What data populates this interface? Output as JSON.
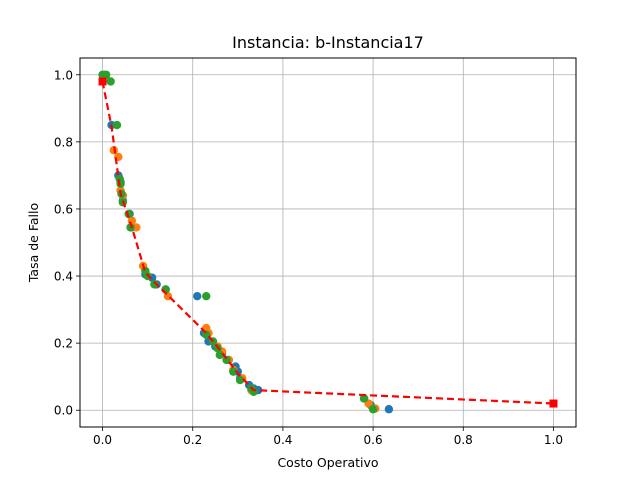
{
  "chart_data": {
    "type": "scatter",
    "title": "Instancia: b-Instancia17",
    "xlabel": "Costo Operativo",
    "ylabel": "Tasa de Fallo",
    "xlim": [
      -0.05,
      1.05
    ],
    "ylim": [
      -0.05,
      1.05
    ],
    "xticks": [
      0.0,
      0.2,
      0.4,
      0.6,
      0.8,
      1.0
    ],
    "yticks": [
      0.0,
      0.2,
      0.4,
      0.6,
      0.8,
      1.0
    ],
    "grid": true,
    "legend": "none",
    "series": [
      {
        "color": "#1f77b4",
        "marker": "circle",
        "points": [
          [
            0.005,
            1.0
          ],
          [
            0.02,
            0.85
          ],
          [
            0.035,
            0.7
          ],
          [
            0.04,
            0.68
          ],
          [
            0.045,
            0.64
          ],
          [
            0.045,
            0.625
          ],
          [
            0.06,
            0.585
          ],
          [
            0.065,
            0.545
          ],
          [
            0.095,
            0.405
          ],
          [
            0.11,
            0.395
          ],
          [
            0.12,
            0.375
          ],
          [
            0.14,
            0.36
          ],
          [
            0.21,
            0.34
          ],
          [
            0.225,
            0.23
          ],
          [
            0.235,
            0.205
          ],
          [
            0.25,
            0.19
          ],
          [
            0.265,
            0.17
          ],
          [
            0.28,
            0.15
          ],
          [
            0.295,
            0.13
          ],
          [
            0.3,
            0.115
          ],
          [
            0.305,
            0.095
          ],
          [
            0.325,
            0.075
          ],
          [
            0.335,
            0.065
          ],
          [
            0.345,
            0.06
          ],
          [
            0.58,
            0.035
          ],
          [
            0.595,
            0.015
          ],
          [
            0.6,
            0.005
          ],
          [
            0.635,
            0.003
          ]
        ]
      },
      {
        "color": "#ff7f0e",
        "marker": "circle",
        "points": [
          [
            0.003,
            0.995
          ],
          [
            0.025,
            0.775
          ],
          [
            0.035,
            0.755
          ],
          [
            0.04,
            0.655
          ],
          [
            0.045,
            0.64
          ],
          [
            0.065,
            0.565
          ],
          [
            0.075,
            0.545
          ],
          [
            0.09,
            0.43
          ],
          [
            0.145,
            0.34
          ],
          [
            0.23,
            0.245
          ],
          [
            0.235,
            0.23
          ],
          [
            0.255,
            0.19
          ],
          [
            0.265,
            0.175
          ],
          [
            0.28,
            0.15
          ],
          [
            0.29,
            0.12
          ],
          [
            0.31,
            0.095
          ],
          [
            0.33,
            0.06
          ],
          [
            0.59,
            0.02
          ],
          [
            0.605,
            0.005
          ]
        ]
      },
      {
        "color": "#2ca02c",
        "marker": "circle",
        "points": [
          [
            0.0,
            1.0
          ],
          [
            0.008,
            1.0
          ],
          [
            0.018,
            0.98
          ],
          [
            0.032,
            0.85
          ],
          [
            0.038,
            0.69
          ],
          [
            0.04,
            0.675
          ],
          [
            0.042,
            0.645
          ],
          [
            0.045,
            0.62
          ],
          [
            0.058,
            0.585
          ],
          [
            0.062,
            0.545
          ],
          [
            0.095,
            0.415
          ],
          [
            0.1,
            0.4
          ],
          [
            0.115,
            0.375
          ],
          [
            0.14,
            0.36
          ],
          [
            0.23,
            0.34
          ],
          [
            0.23,
            0.225
          ],
          [
            0.245,
            0.205
          ],
          [
            0.255,
            0.185
          ],
          [
            0.26,
            0.165
          ],
          [
            0.275,
            0.15
          ],
          [
            0.29,
            0.115
          ],
          [
            0.305,
            0.09
          ],
          [
            0.33,
            0.065
          ],
          [
            0.335,
            0.055
          ],
          [
            0.58,
            0.035
          ],
          [
            0.6,
            0.003
          ]
        ]
      },
      {
        "color": "#ff0000",
        "marker": "square",
        "line": "dashed",
        "points": [
          [
            0.0,
            0.98
          ],
          [
            0.02,
            0.845
          ],
          [
            0.04,
            0.645
          ],
          [
            0.065,
            0.545
          ],
          [
            0.095,
            0.41
          ],
          [
            0.12,
            0.375
          ],
          [
            0.2,
            0.27
          ],
          [
            0.23,
            0.23
          ],
          [
            0.26,
            0.18
          ],
          [
            0.3,
            0.11
          ],
          [
            0.335,
            0.06
          ],
          [
            1.0,
            0.02
          ]
        ],
        "end_markers": [
          [
            0.0,
            0.98
          ],
          [
            1.0,
            0.02
          ]
        ]
      }
    ]
  }
}
